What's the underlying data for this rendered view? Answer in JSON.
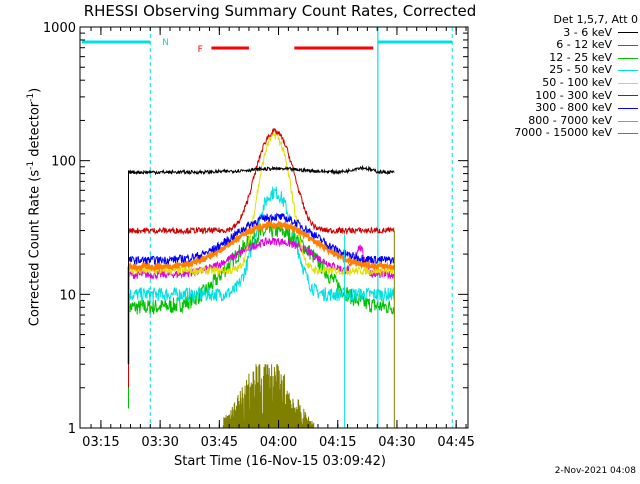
{
  "chart_data": {
    "type": "line",
    "title": "RHESSI Observing Summary Count Rates, Corrected",
    "xlabel": "Start Time (16-Nov-15 03:09:42)",
    "ylabel_main": "Corrected Count Rate (s",
    "ylabel_sup1": "-1",
    "ylabel_mid": " detector",
    "ylabel_sup2": "-1",
    "ylabel_end": ")",
    "y_scale": "log",
    "ylim": [
      1,
      1000
    ],
    "xlim": [
      "03:09:42",
      "04:48:00"
    ],
    "x_ticks": [
      "03:15",
      "03:30",
      "03:45",
      "04:00",
      "04:15",
      "04:30",
      "04:45"
    ],
    "y_ticks": [
      "1",
      "10",
      "100",
      "1000"
    ],
    "legend_header": "Det 1,5,7, Att 0",
    "legend_position": "right, outside plot",
    "series": [
      {
        "name": "3 - 6 keV",
        "color": "#000000",
        "baseline": 82,
        "peak": 88
      },
      {
        "name": "6 - 12 keV",
        "color": "#e000e0",
        "baseline": 14,
        "peak": 25
      },
      {
        "name": "12 - 25 keV",
        "color": "#00c000",
        "baseline": 8,
        "peak": 30
      },
      {
        "name": "25 - 50 keV",
        "color": "#00e0e0",
        "baseline": 10,
        "peak": 58
      },
      {
        "name": "50 - 100 keV",
        "color": "#e0e000",
        "baseline": 15,
        "peak": 155
      },
      {
        "name": "100 - 300 keV",
        "color": "#d00000",
        "baseline": 30,
        "peak": 165
      },
      {
        "name": "300 - 800 keV",
        "color": "#0000ff",
        "baseline": 18,
        "peak": 38
      },
      {
        "name": "800 - 7000 keV",
        "color": "#ff7f00",
        "baseline": 16,
        "peak": 33
      },
      {
        "name": "7000 - 15000 keV",
        "color": "#808000",
        "baseline": 0,
        "peak": 3
      }
    ],
    "flag_labels": {
      "night": "N",
      "flare": "F"
    },
    "colors": {
      "night": "#00e0e0",
      "flare": "#ff0000",
      "axis": "#000000"
    }
  },
  "footer": {
    "date_stamp": "2-Nov-2021 04:08"
  }
}
